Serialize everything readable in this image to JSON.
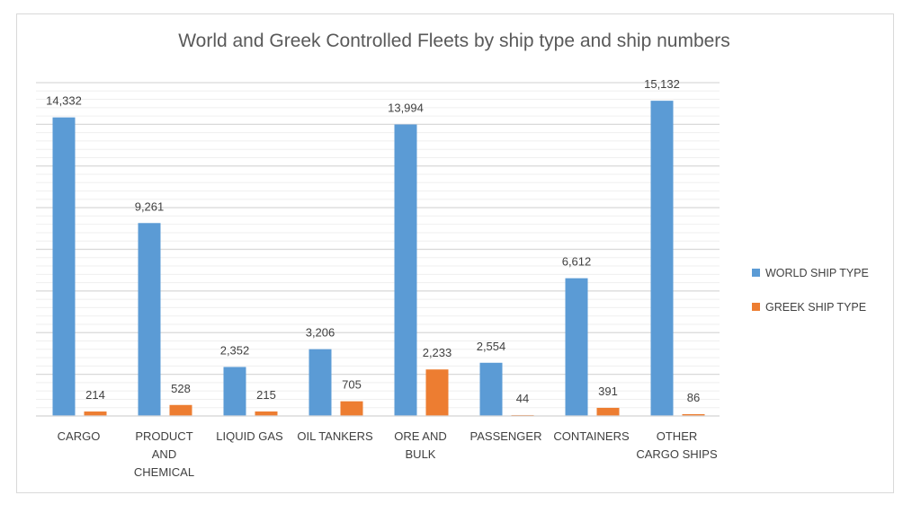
{
  "chart_data": {
    "type": "bar",
    "title": "World and Greek Controlled Fleets by ship type and ship numbers",
    "categories": [
      "CARGO",
      "PRODUCT AND CHEMICAL",
      "LIQUID GAS",
      "OIL TANKERS",
      "ORE AND BULK",
      "PASSENGER",
      "CONTAINERS",
      "OTHER CARGO SHIPS"
    ],
    "category_lines": [
      [
        "CARGO"
      ],
      [
        "PRODUCT",
        "AND",
        "CHEMICAL"
      ],
      [
        "LIQUID GAS"
      ],
      [
        "OIL TANKERS"
      ],
      [
        "ORE AND",
        "BULK"
      ],
      [
        "PASSENGER"
      ],
      [
        "CONTAINERS"
      ],
      [
        "OTHER",
        "CARGO SHIPS"
      ]
    ],
    "series": [
      {
        "name": "WORLD SHIP TYPE",
        "color": "#5b9bd5",
        "values": [
          14332,
          9261,
          2352,
          3206,
          13994,
          2554,
          6612,
          15132
        ],
        "labels": [
          "14,332",
          "9,261",
          "2,352",
          "3,206",
          "13,994",
          "2,554",
          "6,612",
          "15,132"
        ]
      },
      {
        "name": "GREEK SHIP TYPE",
        "color": "#ed7d31",
        "values": [
          214,
          528,
          215,
          705,
          2233,
          44,
          391,
          86
        ],
        "labels": [
          "214",
          "528",
          "215",
          "705",
          "2,233",
          "44",
          "391",
          "86"
        ]
      }
    ],
    "ylim": [
      0,
      16000
    ],
    "major_gridline_step": 2000,
    "minor_gridline_step": 400,
    "grid": true,
    "y_tick_labels_shown": false,
    "legend": "right"
  }
}
